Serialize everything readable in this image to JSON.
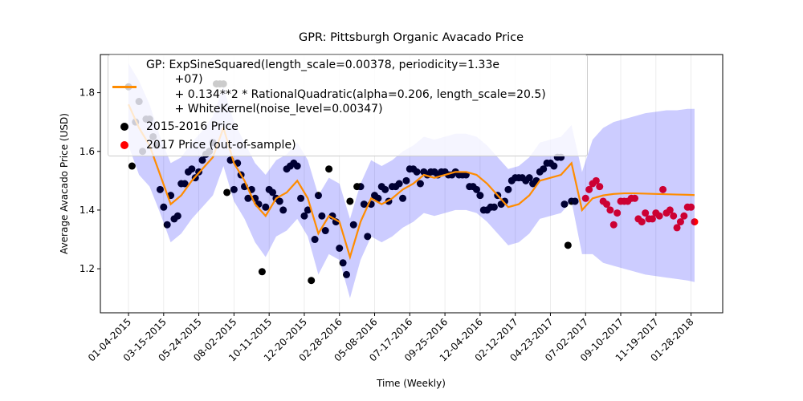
{
  "chart_data": {
    "type": "scatter",
    "title": "GPR: Pittsburgh Organic Avacado Price",
    "xlabel": "Time (Weekly)",
    "ylabel": "Average Avacado Price (USD)",
    "xlim": [
      -8,
      169
    ],
    "ylim": [
      1.05,
      1.93
    ],
    "yticks": [
      1.2,
      1.4,
      1.6,
      1.8
    ],
    "xticks": [
      {
        "value": 0,
        "label": "01-04-2015"
      },
      {
        "value": 10,
        "label": "03-15-2015"
      },
      {
        "value": 20,
        "label": "05-24-2015"
      },
      {
        "value": 30,
        "label": "08-02-2015"
      },
      {
        "value": 40,
        "label": "10-11-2015"
      },
      {
        "value": 50,
        "label": "12-20-2015"
      },
      {
        "value": 60,
        "label": "02-28-2016"
      },
      {
        "value": 70,
        "label": "05-08-2016"
      },
      {
        "value": 80,
        "label": "07-17-2016"
      },
      {
        "value": 90,
        "label": "09-25-2016"
      },
      {
        "value": 100,
        "label": "12-04-2016"
      },
      {
        "value": 110,
        "label": "02-12-2017"
      },
      {
        "value": 120,
        "label": "04-23-2017"
      },
      {
        "value": 130,
        "label": "07-02-2017"
      },
      {
        "value": 140,
        "label": "09-10-2017"
      },
      {
        "value": 150,
        "label": "11-19-2017"
      },
      {
        "value": 160,
        "label": "01-28-2018"
      }
    ],
    "legend": "upper left",
    "band": {
      "color": "#0000ff",
      "alpha": 0.2,
      "x": [
        0,
        3,
        6,
        9,
        12,
        15,
        18,
        21,
        24,
        27,
        30,
        33,
        36,
        39,
        42,
        45,
        48,
        51,
        54,
        57,
        60,
        63,
        66,
        69,
        72,
        75,
        78,
        81,
        84,
        87,
        90,
        93,
        96,
        99,
        102,
        105,
        108,
        111,
        114,
        117,
        120,
        123,
        126,
        129,
        132,
        135,
        138,
        141,
        144,
        147,
        150,
        153,
        156,
        159,
        161
      ],
      "upper": [
        1.9,
        1.84,
        1.76,
        1.65,
        1.56,
        1.58,
        1.63,
        1.67,
        1.72,
        1.82,
        1.7,
        1.63,
        1.56,
        1.52,
        1.57,
        1.59,
        1.63,
        1.57,
        1.45,
        1.51,
        1.49,
        1.37,
        1.49,
        1.57,
        1.55,
        1.57,
        1.6,
        1.62,
        1.65,
        1.64,
        1.65,
        1.66,
        1.66,
        1.65,
        1.62,
        1.58,
        1.54,
        1.55,
        1.58,
        1.63,
        1.64,
        1.65,
        1.69,
        1.53,
        1.64,
        1.68,
        1.7,
        1.71,
        1.72,
        1.73,
        1.735,
        1.74,
        1.74,
        1.745,
        1.745
      ],
      "lower": [
        1.62,
        1.52,
        1.48,
        1.39,
        1.29,
        1.32,
        1.37,
        1.41,
        1.45,
        1.55,
        1.43,
        1.37,
        1.29,
        1.24,
        1.31,
        1.33,
        1.37,
        1.31,
        1.18,
        1.25,
        1.23,
        1.1,
        1.23,
        1.31,
        1.29,
        1.31,
        1.34,
        1.36,
        1.39,
        1.38,
        1.39,
        1.4,
        1.4,
        1.39,
        1.36,
        1.32,
        1.28,
        1.29,
        1.32,
        1.37,
        1.38,
        1.39,
        1.43,
        1.25,
        1.25,
        1.22,
        1.21,
        1.2,
        1.19,
        1.18,
        1.175,
        1.17,
        1.165,
        1.16,
        1.155
      ]
    },
    "series": [
      {
        "name": "GP: ExpSineSquared(length_scale=0.00378, periodicity=1.33e\n        +07)\n        + 0.134**2 * RationalQuadratic(alpha=0.206, length_scale=20.5)\n        + WhiteKernel(noise_level=0.00347)",
        "type": "line",
        "color": "#ff8c00",
        "x": [
          0,
          3,
          6,
          9,
          12,
          15,
          18,
          21,
          24,
          27,
          30,
          33,
          36,
          39,
          42,
          45,
          48,
          51,
          54,
          57,
          60,
          63,
          66,
          69,
          72,
          75,
          78,
          81,
          84,
          87,
          90,
          93,
          96,
          99,
          102,
          105,
          108,
          111,
          114,
          117,
          120,
          123,
          126,
          129,
          132,
          135,
          138,
          141,
          144,
          147,
          150,
          153,
          156,
          159,
          161
        ],
        "values": [
          1.76,
          1.68,
          1.62,
          1.52,
          1.42,
          1.45,
          1.5,
          1.54,
          1.58,
          1.68,
          1.56,
          1.5,
          1.42,
          1.38,
          1.44,
          1.46,
          1.5,
          1.44,
          1.32,
          1.38,
          1.36,
          1.24,
          1.36,
          1.44,
          1.42,
          1.44,
          1.47,
          1.49,
          1.52,
          1.51,
          1.52,
          1.53,
          1.53,
          1.52,
          1.49,
          1.45,
          1.41,
          1.42,
          1.45,
          1.5,
          1.51,
          1.52,
          1.56,
          1.4,
          1.44,
          1.45,
          1.455,
          1.457,
          1.457,
          1.456,
          1.455,
          1.454,
          1.453,
          1.452,
          1.451
        ]
      },
      {
        "name": "2015-2016 Price",
        "type": "scatter",
        "color": "#000000",
        "x": [
          0,
          1,
          2,
          3,
          4,
          5,
          6,
          7,
          8,
          9,
          10,
          11,
          12,
          13,
          14,
          15,
          16,
          17,
          18,
          19,
          20,
          21,
          22,
          23,
          24,
          25,
          26,
          27,
          28,
          29,
          30,
          31,
          32,
          33,
          34,
          35,
          36,
          37,
          38,
          39,
          40,
          41,
          42,
          43,
          44,
          45,
          46,
          47,
          48,
          49,
          50,
          51,
          52,
          53,
          54,
          55,
          56,
          57,
          58,
          59,
          60,
          61,
          62,
          63,
          64,
          65,
          66,
          67,
          68,
          69,
          70,
          71,
          72,
          73,
          74,
          75,
          76,
          77,
          78,
          79,
          80,
          81,
          82,
          83,
          84,
          85,
          86,
          87,
          88,
          89,
          90,
          91,
          92,
          93,
          94,
          95,
          96,
          97,
          98,
          99,
          100,
          101,
          102,
          103,
          104,
          105,
          106,
          107,
          108,
          109,
          110,
          111,
          112,
          113,
          114,
          115,
          116,
          117,
          118,
          119,
          120,
          121,
          122,
          123,
          124,
          125,
          126,
          127
        ],
        "values": [
          1.82,
          1.55,
          1.7,
          1.77,
          1.6,
          1.71,
          1.71,
          1.65,
          1.62,
          1.47,
          1.41,
          1.35,
          1.45,
          1.37,
          1.38,
          1.49,
          1.49,
          1.53,
          1.54,
          1.51,
          1.53,
          1.57,
          1.59,
          1.6,
          1.63,
          1.83,
          1.83,
          1.83,
          1.46,
          1.57,
          1.47,
          1.56,
          1.52,
          1.48,
          1.44,
          1.47,
          1.44,
          1.42,
          1.19,
          1.41,
          1.47,
          1.46,
          1.44,
          1.43,
          1.4,
          1.54,
          1.55,
          1.56,
          1.55,
          1.44,
          1.38,
          1.4,
          1.16,
          1.3,
          1.45,
          1.38,
          1.33,
          1.54,
          1.38,
          1.36,
          1.27,
          1.22,
          1.18,
          1.43,
          1.35,
          1.48,
          1.48,
          1.42,
          1.31,
          1.42,
          1.45,
          1.44,
          1.48,
          1.47,
          1.43,
          1.48,
          1.48,
          1.49,
          1.44,
          1.5,
          1.54,
          1.54,
          1.53,
          1.49,
          1.53,
          1.52,
          1.53,
          1.53,
          1.52,
          1.53,
          1.53,
          1.52,
          1.52,
          1.53,
          1.52,
          1.52,
          1.52,
          1.48,
          1.48,
          1.47,
          1.45,
          1.4,
          1.4,
          1.41,
          1.41,
          1.45,
          1.42,
          1.43,
          1.47,
          1.5,
          1.51,
          1.51,
          1.51,
          1.5,
          1.51,
          1.49,
          1.5,
          1.53,
          1.54,
          1.56,
          1.56,
          1.55,
          1.58,
          1.58,
          1.42,
          1.28,
          1.43,
          1.43
        ]
      },
      {
        "name": "2017 Price (out-of-sample)",
        "type": "scatter",
        "color": "#ff0000",
        "x": [
          130,
          131,
          132,
          133,
          134,
          135,
          136,
          137,
          138,
          139,
          140,
          141,
          142,
          143,
          144,
          145,
          146,
          147,
          148,
          149,
          150,
          151,
          152,
          153,
          154,
          155,
          156,
          157,
          158,
          159,
          160,
          161
        ],
        "values": [
          1.44,
          1.47,
          1.49,
          1.5,
          1.48,
          1.43,
          1.42,
          1.4,
          1.35,
          1.39,
          1.43,
          1.43,
          1.43,
          1.44,
          1.44,
          1.37,
          1.36,
          1.39,
          1.37,
          1.37,
          1.39,
          1.38,
          1.47,
          1.39,
          1.4,
          1.38,
          1.34,
          1.36,
          1.38,
          1.41,
          1.41,
          1.36
        ]
      }
    ]
  }
}
